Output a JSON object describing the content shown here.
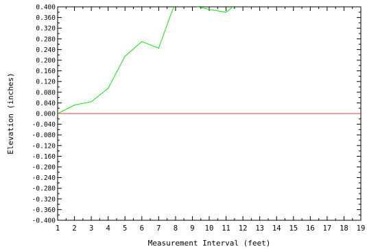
{
  "chart_data": {
    "type": "line",
    "title": "",
    "xlabel": "Measurement Interval (feet)",
    "ylabel": "Elevation (inches)",
    "xlim": [
      1,
      19
    ],
    "ylim": [
      -0.4,
      0.4
    ],
    "x_ticks": [
      1,
      2,
      3,
      4,
      5,
      6,
      7,
      8,
      9,
      10,
      11,
      12,
      13,
      14,
      15,
      16,
      17,
      18,
      19
    ],
    "y_ticks": [
      0.4,
      0.36,
      0.32,
      0.28,
      0.24,
      0.2,
      0.16,
      0.12,
      0.08,
      0.04,
      0.0,
      -0.04,
      -0.08,
      -0.12,
      -0.16,
      -0.2,
      -0.24,
      -0.28,
      -0.32,
      -0.36,
      -0.4
    ],
    "y_tick_labels": [
      "0.400",
      "0.360",
      "0.320",
      "0.280",
      "0.240",
      "0.200",
      "0.160",
      "0.120",
      "0.080",
      "0.040",
      "0.000",
      "-0.040",
      "-0.080",
      "-0.120",
      "-0.160",
      "-0.200",
      "-0.240",
      "-0.280",
      "-0.320",
      "-0.360",
      "-0.400"
    ],
    "grid": false,
    "series": [
      {
        "color": "#00ee00",
        "points": [
          [
            1,
            0.0
          ],
          [
            2,
            0.032
          ],
          [
            3,
            0.044
          ],
          [
            4,
            0.095
          ],
          [
            5,
            0.215
          ],
          [
            6,
            0.27
          ],
          [
            7,
            0.245
          ],
          [
            8,
            0.42
          ],
          [
            10,
            0.39
          ],
          [
            11,
            0.38
          ],
          [
            11.5,
            0.405
          ]
        ]
      }
    ],
    "reference_lines": [
      {
        "y": 0.0,
        "color": "#ee3333"
      }
    ]
  }
}
